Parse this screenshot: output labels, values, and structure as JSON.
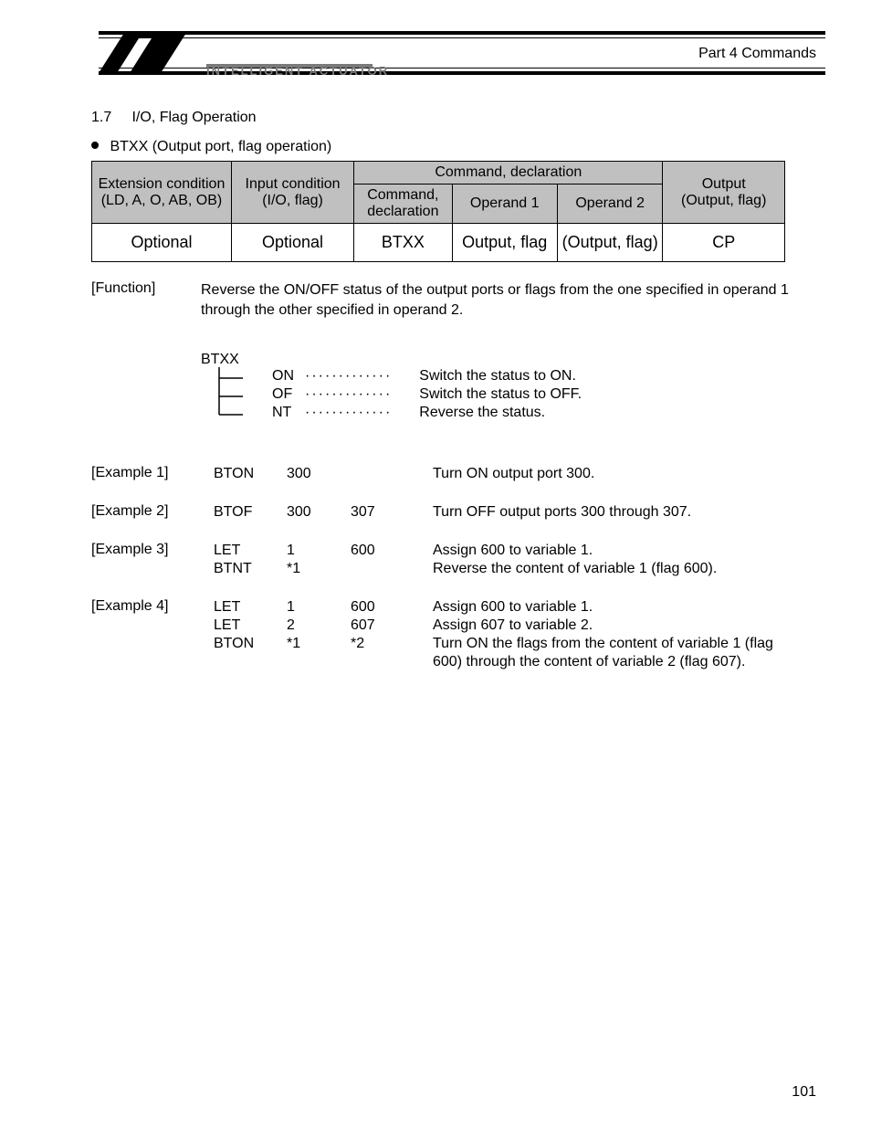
{
  "header": {
    "part_title": "Part 4   Commands",
    "brand": "INTELLIGENT ACTUATOR"
  },
  "section": {
    "number": "1.7",
    "title": "I/O, Flag Operation"
  },
  "command_heading": "BTXX (Output port, flag operation)",
  "table": {
    "cols": {
      "ext": {
        "l1": "Extension condition",
        "l2": "(LD, A, O, AB, OB)"
      },
      "inp": {
        "l1": "Input condition",
        "l2": "(I/O, flag)"
      },
      "cmdspan": "Command, declaration",
      "cmd": "Command, declaration",
      "op1": "Operand 1",
      "op2": "Operand 2",
      "out": {
        "l1": "Output",
        "l2": "(Output, flag)"
      }
    },
    "row": {
      "ext": "Optional",
      "inp": "Optional",
      "cmd": "BTXX",
      "op1": "Output, flag",
      "op2": "(Output, flag)",
      "out": "CP"
    }
  },
  "function": {
    "label": "[Function]",
    "text": "Reverse the ON/OFF status of the output ports or flags from the one specified in operand 1 through the other specified in operand 2."
  },
  "tree": {
    "root": "BTXX",
    "items": [
      {
        "suffix": "ON",
        "desc": "Switch the status to ON."
      },
      {
        "suffix": "OF",
        "desc": "Switch the status to OFF."
      },
      {
        "suffix": "NT",
        "desc": "Reverse the status."
      }
    ]
  },
  "examples": [
    {
      "label": "[Example 1]",
      "lines": [
        {
          "cmd": "BTON",
          "op1": "300",
          "op2": "",
          "desc": "Turn ON output port 300."
        }
      ]
    },
    {
      "label": "[Example 2]",
      "lines": [
        {
          "cmd": "BTOF",
          "op1": "300",
          "op2": "307",
          "desc": "Turn OFF output ports 300 through 307."
        }
      ]
    },
    {
      "label": "[Example 3]",
      "lines": [
        {
          "cmd": "LET",
          "op1": "1",
          "op2": "600",
          "desc": "Assign 600 to variable 1."
        },
        {
          "cmd": "BTNT",
          "op1": "*1",
          "op2": "",
          "desc": "Reverse the content of variable 1 (flag 600)."
        }
      ]
    },
    {
      "label": "[Example 4]",
      "lines": [
        {
          "cmd": "LET",
          "op1": "1",
          "op2": "600",
          "desc": "Assign 600 to variable 1."
        },
        {
          "cmd": "LET",
          "op1": "2",
          "op2": "607",
          "desc": "Assign 607 to variable 2."
        },
        {
          "cmd": "BTON",
          "op1": "*1",
          "op2": "*2",
          "desc": "Turn ON the flags from the content of variable 1 (flag 600) through the content of variable 2 (flag 607)."
        }
      ]
    }
  ],
  "page_number": "101"
}
